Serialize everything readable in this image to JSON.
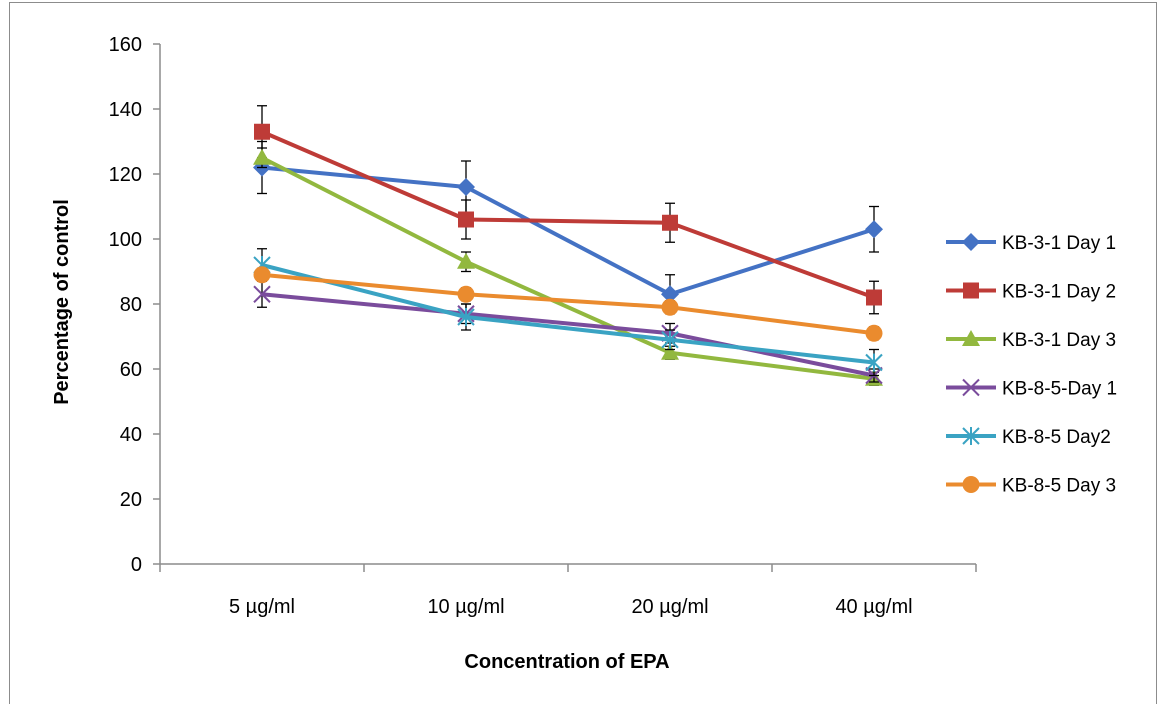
{
  "chart_data": {
    "type": "line",
    "title": "",
    "xlabel": "Concentration of EPA",
    "ylabel": "Percentage  of control",
    "categories": [
      "5 µg/ml",
      "10 µg/ml",
      "20 µg/ml",
      "40 µg/ml"
    ],
    "ylim": [
      0,
      160
    ],
    "yticks": [
      0,
      20,
      40,
      60,
      80,
      100,
      120,
      140,
      160
    ],
    "grid": false,
    "legend_position": "right",
    "series": [
      {
        "name": "KB-3-1 Day 1",
        "color": "#4472C4",
        "marker": "diamond",
        "values": [
          122,
          116,
          83,
          103
        ],
        "errors": [
          8,
          8,
          6,
          7
        ]
      },
      {
        "name": "KB-3-1 Day 2",
        "color": "#BE3B37",
        "marker": "square",
        "values": [
          133,
          106,
          105,
          82
        ],
        "errors": [
          8,
          6,
          6,
          5
        ]
      },
      {
        "name": "KB-3-1 Day 3",
        "color": "#92B83F",
        "marker": "triangle",
        "values": [
          125,
          93,
          65,
          57
        ],
        "errors": [
          3,
          3,
          2,
          2
        ]
      },
      {
        "name": "KB-8-5-Day 1",
        "color": "#7A4C9C",
        "marker": "x",
        "values": [
          83,
          77,
          71,
          58
        ],
        "errors": [
          4,
          3,
          3,
          2
        ]
      },
      {
        "name": "KB-8-5 Day2",
        "color": "#3AA3C3",
        "marker": "star",
        "values": [
          92,
          76,
          69,
          62
        ],
        "errors": [
          5,
          4,
          3,
          4
        ]
      },
      {
        "name": "KB-8-5 Day 3",
        "color": "#EA8B2E",
        "marker": "circle",
        "values": [
          89,
          83,
          79,
          71
        ],
        "errors": [
          2,
          2,
          2,
          2
        ]
      }
    ]
  }
}
